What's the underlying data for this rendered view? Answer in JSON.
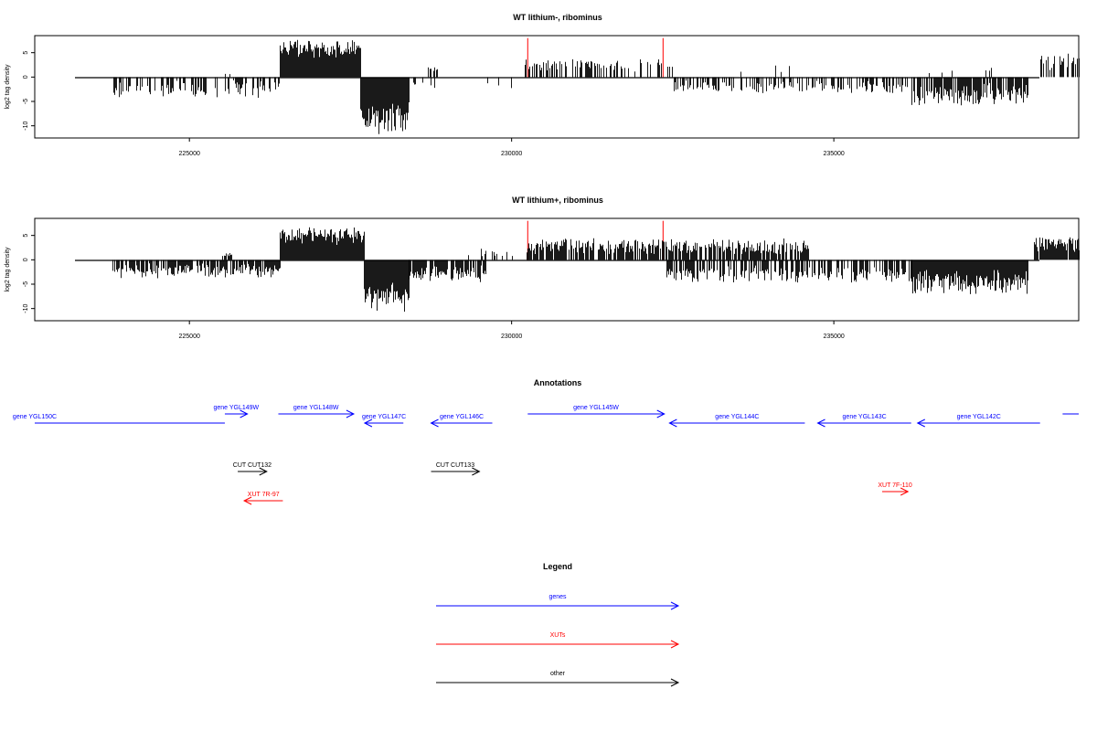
{
  "chart_data": [
    {
      "type": "bar",
      "title": "WT lithium-, ribominus",
      "ylabel": "log2 tag density",
      "xlabel": "",
      "xlim": [
        222600,
        238800
      ],
      "ylim": [
        -12.5,
        8.5
      ],
      "x_ticks": [
        225000,
        230000,
        235000
      ],
      "y_ticks": [
        5,
        0,
        -5,
        -10
      ],
      "grid": false,
      "legend": "none",
      "bar_color": "#000000",
      "red_markers": [
        {
          "x": 230250,
          "y": 8
        },
        {
          "x": 232350,
          "y": 8
        }
      ],
      "segments": [
        {
          "start": 223800,
          "end": 226400,
          "min": -4.5,
          "max": -0.5,
          "sign": -1,
          "density": 0.45
        },
        {
          "start": 225500,
          "end": 225650,
          "min": 0.3,
          "max": 1.2,
          "sign": 1,
          "density": 0.3
        },
        {
          "start": 226400,
          "end": 227650,
          "min": 3.5,
          "max": 8,
          "sign": 1,
          "density": 1
        },
        {
          "start": 227650,
          "end": 228400,
          "min": -12,
          "max": -5,
          "sign": -1,
          "density": 1
        },
        {
          "start": 228400,
          "end": 230200,
          "min": -3,
          "max": -0.5,
          "sign": -1,
          "density": 0.08
        },
        {
          "start": 228700,
          "end": 229000,
          "min": 1,
          "max": 2.2,
          "sign": 1,
          "density": 0.3
        },
        {
          "start": 230200,
          "end": 232500,
          "min": 1,
          "max": 4,
          "sign": 1,
          "density": 0.4
        },
        {
          "start": 232500,
          "end": 236200,
          "min": -3.5,
          "max": -0.5,
          "sign": -1,
          "density": 0.45
        },
        {
          "start": 233500,
          "end": 234300,
          "min": 0.5,
          "max": 3,
          "sign": 1,
          "density": 0.05
        },
        {
          "start": 236200,
          "end": 238000,
          "min": -6.5,
          "max": -1,
          "sign": -1,
          "density": 0.85
        },
        {
          "start": 236200,
          "end": 238000,
          "min": 0.5,
          "max": 2,
          "sign": 1,
          "density": 0.05
        },
        {
          "start": 238200,
          "end": 238800,
          "min": 1,
          "max": 5,
          "sign": 1,
          "density": 0.55
        }
      ]
    },
    {
      "type": "bar",
      "title": "WT lithium+, ribominus",
      "ylabel": "log2 tag density",
      "xlabel": "",
      "xlim": [
        222600,
        238800
      ],
      "ylim": [
        -12.5,
        8.5
      ],
      "x_ticks": [
        225000,
        230000,
        235000
      ],
      "y_ticks": [
        5,
        0,
        -5,
        -10
      ],
      "grid": false,
      "legend": "none",
      "bar_color": "#000000",
      "red_markers": [
        {
          "x": 230250,
          "y": 8
        },
        {
          "x": 232350,
          "y": 8
        }
      ],
      "segments": [
        {
          "start": 223800,
          "end": 226400,
          "min": -4,
          "max": -0.5,
          "sign": -1,
          "density": 0.75
        },
        {
          "start": 225500,
          "end": 225650,
          "min": 0.5,
          "max": 1.5,
          "sign": 1,
          "density": 0.4
        },
        {
          "start": 226400,
          "end": 227700,
          "min": 3,
          "max": 7.5,
          "sign": 1,
          "density": 1
        },
        {
          "start": 227700,
          "end": 228400,
          "min": -11,
          "max": -4,
          "sign": -1,
          "density": 1
        },
        {
          "start": 228400,
          "end": 229600,
          "min": -5,
          "max": -1,
          "sign": -1,
          "density": 0.85
        },
        {
          "start": 229300,
          "end": 230000,
          "min": 0.5,
          "max": 2.5,
          "sign": 1,
          "density": 0.25
        },
        {
          "start": 230200,
          "end": 234600,
          "min": 1,
          "max": 4.5,
          "sign": 1,
          "density": 0.75
        },
        {
          "start": 232400,
          "end": 236200,
          "min": -5,
          "max": -1,
          "sign": -1,
          "density": 0.6
        },
        {
          "start": 236200,
          "end": 238000,
          "min": -7.5,
          "max": -1.5,
          "sign": -1,
          "density": 1
        },
        {
          "start": 236200,
          "end": 236400,
          "min": 1.5,
          "max": 3.5,
          "sign": 1,
          "density": 0.3
        },
        {
          "start": 238100,
          "end": 238800,
          "min": 1.5,
          "max": 5,
          "sign": 1,
          "density": 0.9
        }
      ]
    }
  ],
  "annotations": {
    "title": "Annotations",
    "items": [
      {
        "label": "gene YGL150C",
        "color": "#0000ff",
        "dir": "left",
        "start": 222600,
        "end": 225550,
        "row": 1
      },
      {
        "label": "gene YGL149W",
        "color": "#0000ff",
        "dir": "right",
        "start": 225550,
        "end": 225900,
        "row": 0
      },
      {
        "label": "gene YGL148W",
        "color": "#0000ff",
        "dir": "right",
        "start": 226380,
        "end": 227550,
        "row": 0
      },
      {
        "label": "gene YGL147C",
        "color": "#0000ff",
        "dir": "left",
        "start": 227720,
        "end": 228320,
        "row": 1
      },
      {
        "label": "gene YGL146C",
        "color": "#0000ff",
        "dir": "left",
        "start": 228750,
        "end": 229700,
        "row": 1
      },
      {
        "label": "gene YGL145W",
        "color": "#0000ff",
        "dir": "right",
        "start": 230250,
        "end": 232370,
        "row": 0
      },
      {
        "label": "gene YGL144C",
        "color": "#0000ff",
        "dir": "left",
        "start": 232450,
        "end": 234550,
        "row": 1
      },
      {
        "label": "gene YGL143C",
        "color": "#0000ff",
        "dir": "left",
        "start": 234750,
        "end": 236200,
        "row": 1
      },
      {
        "label": "gene YGL142C",
        "color": "#0000ff",
        "dir": "left",
        "start": 236300,
        "end": 238200,
        "row": 1
      },
      {
        "label": "gene",
        "color": "#0000ff",
        "dir": "right",
        "start": 238550,
        "end": 240000,
        "row": 0
      },
      {
        "label": "CUT CUT132",
        "color": "#000000",
        "dir": "right",
        "start": 225750,
        "end": 226200,
        "row": 2
      },
      {
        "label": "CUT CUT133",
        "color": "#000000",
        "dir": "right",
        "start": 228750,
        "end": 229500,
        "row": 2
      },
      {
        "label": "XUT 7F-110",
        "color": "#ff0000",
        "dir": "right",
        "start": 235750,
        "end": 236150,
        "row": 3
      },
      {
        "label": "XUT 7R-97",
        "color": "#ff0000",
        "dir": "left",
        "start": 225850,
        "end": 226450,
        "row": 4
      }
    ]
  },
  "legend": {
    "title": "Legend",
    "items": [
      {
        "label": "genes",
        "color": "#0000ff"
      },
      {
        "label": "XUTs",
        "color": "#ff0000"
      },
      {
        "label": "other",
        "color": "#000000"
      }
    ]
  }
}
